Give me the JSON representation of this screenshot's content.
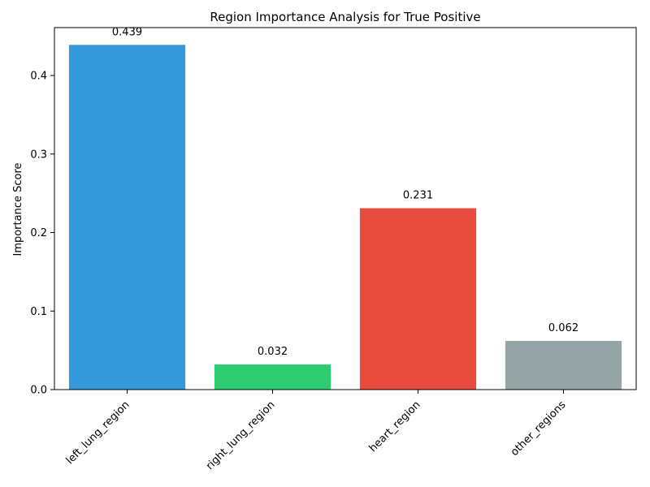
{
  "chart_data": {
    "type": "bar",
    "title": "Region Importance Analysis for True Positive",
    "xlabel": "",
    "ylabel": "Importance Score",
    "categories": [
      "left_lung_region",
      "right_lung_region",
      "heart_region",
      "other_regions"
    ],
    "values": [
      0.439,
      0.032,
      0.231,
      0.062
    ],
    "value_labels": [
      "0.439",
      "0.032",
      "0.231",
      "0.062"
    ],
    "colors": [
      "#3498db",
      "#2ecc71",
      "#e74c3c",
      "#95a5a6"
    ],
    "ylim": [
      0,
      0.461
    ],
    "yticks": [
      0.0,
      0.1,
      0.2,
      0.3,
      0.4
    ],
    "ytick_labels": [
      "0.0",
      "0.1",
      "0.2",
      "0.3",
      "0.4"
    ],
    "grid": false,
    "legend": "none"
  }
}
